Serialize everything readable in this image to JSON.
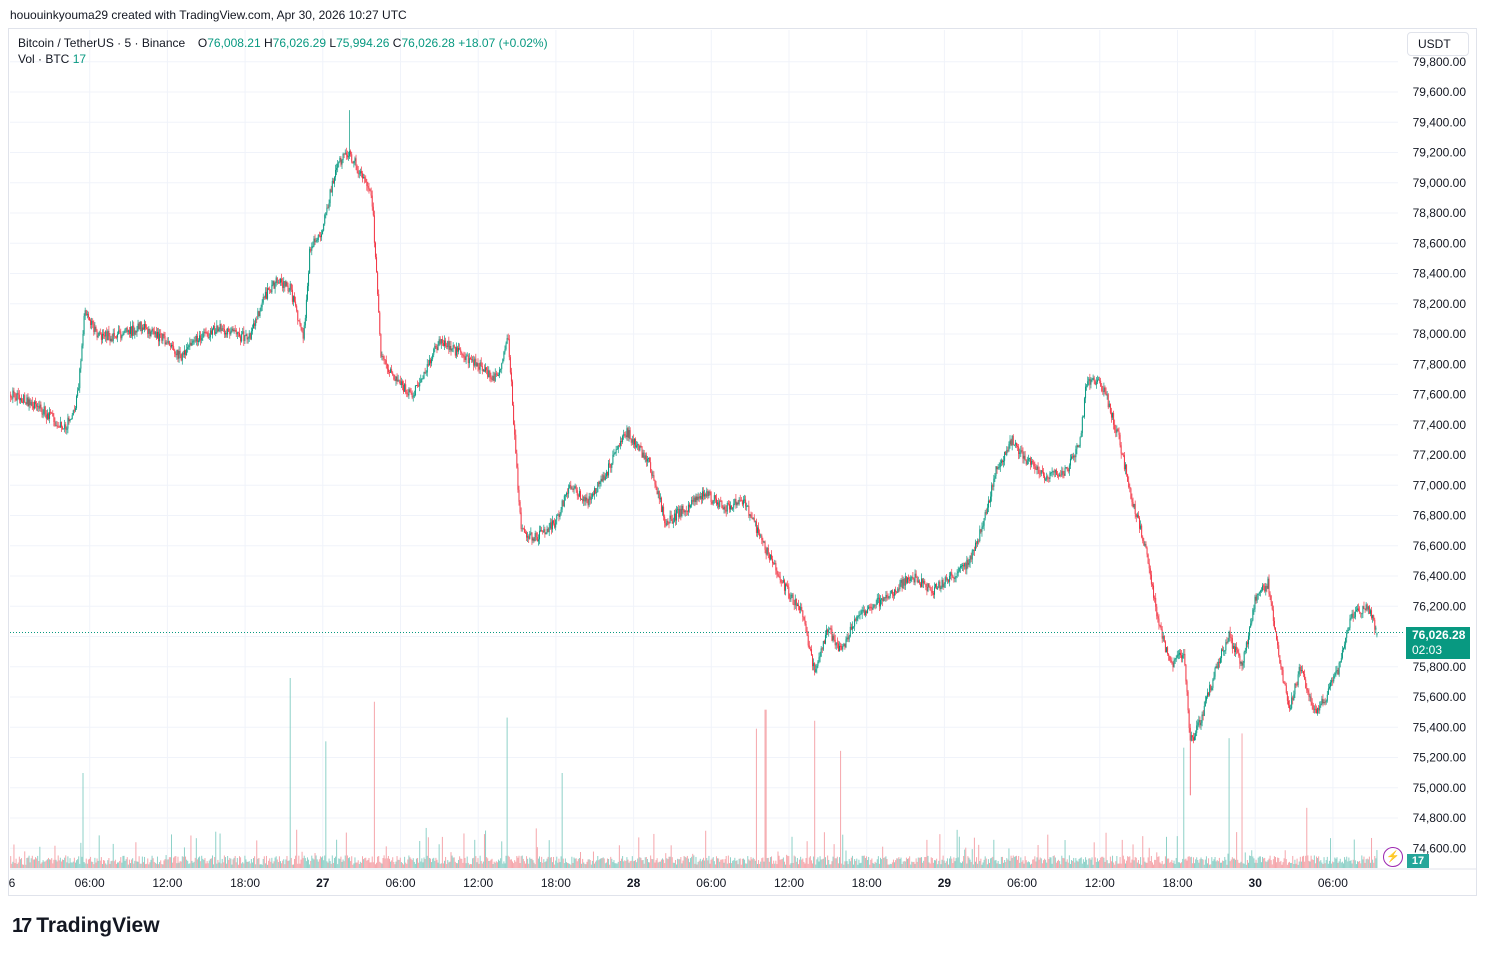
{
  "caption": "hououinkyouma29 created with TradingView.com, Apr 30, 2026 10:27 UTC",
  "legend": {
    "symbol": "Bitcoin / TetherUS · 5 · Binance",
    "o_label": "O",
    "o_value": "76,008.21",
    "h_label": "H",
    "h_value": "76,026.29",
    "l_label": "L",
    "l_value": "75,994.26",
    "c_label": "C",
    "c_value": "76,026.28",
    "change": "+18.07 (+0.02%)",
    "vol_label": "Vol · BTC",
    "vol_value": "17"
  },
  "currency_button": "USDT",
  "last_price": {
    "price": "76,026.28",
    "countdown": "02:03"
  },
  "volume_tag": "17",
  "brand": {
    "name": "TradingView",
    "mark": "17"
  },
  "colors": {
    "up": "#089981",
    "down": "#f23645",
    "vol_up": "#8ed1c8",
    "vol_down": "#f5a6ab",
    "grid": "#f0f3fa"
  },
  "icons": {
    "alert": "lightning-icon",
    "logo": "tradingview-logo-icon"
  },
  "chart_data": {
    "type": "candlestick",
    "title": "Bitcoin / TetherUS · 5 · Binance",
    "ylim": [
      74500,
      79850
    ],
    "y_ticks": [
      "79,800.00",
      "79,600.00",
      "79,400.00",
      "79,200.00",
      "79,000.00",
      "78,800.00",
      "78,600.00",
      "78,400.00",
      "78,200.00",
      "78,000.00",
      "77,800.00",
      "77,600.00",
      "77,400.00",
      "77,200.00",
      "77,000.00",
      "76,800.00",
      "76,600.00",
      "76,400.00",
      "76,200.00",
      "76,000.00",
      "75,800.00",
      "75,600.00",
      "75,400.00",
      "75,200.00",
      "75,000.00",
      "74,800.00",
      "74,600.00"
    ],
    "y_tick_values": [
      79800,
      79600,
      79400,
      79200,
      79000,
      78800,
      78600,
      78400,
      78200,
      78000,
      77800,
      77600,
      77400,
      77200,
      77000,
      76800,
      76600,
      76400,
      76200,
      76000,
      75800,
      75600,
      75400,
      75200,
      75000,
      74800,
      74600
    ],
    "x_ticks": [
      "6",
      "06:00",
      "12:00",
      "18:00",
      "27",
      "06:00",
      "12:00",
      "18:00",
      "28",
      "06:00",
      "12:00",
      "18:00",
      "29",
      "06:00",
      "12:00",
      "18:00",
      "30",
      "06:00"
    ],
    "x_tick_hours": [
      0,
      6,
      12,
      18,
      24,
      30,
      36,
      42,
      48,
      54,
      60,
      66,
      72,
      78,
      84,
      90,
      96,
      102
    ],
    "x_tick_bold": [
      false,
      false,
      false,
      false,
      true,
      false,
      false,
      false,
      true,
      false,
      false,
      false,
      true,
      false,
      false,
      false,
      true,
      false
    ],
    "interval_minutes": 5,
    "close_path": [
      [
        -0.1,
        77600
      ],
      [
        2,
        77520
      ],
      [
        4,
        77380
      ],
      [
        4.8,
        77480
      ],
      [
        5.2,
        77700
      ],
      [
        5.6,
        78150
      ],
      [
        6.5,
        78000
      ],
      [
        8,
        77980
      ],
      [
        10,
        78050
      ],
      [
        12,
        77950
      ],
      [
        13,
        77850
      ],
      [
        14,
        77950
      ],
      [
        16,
        78050
      ],
      [
        17.5,
        77980
      ],
      [
        18.5,
        78000
      ],
      [
        19.5,
        78250
      ],
      [
        20.5,
        78350
      ],
      [
        21.5,
        78300
      ],
      [
        22.5,
        77950
      ],
      [
        23,
        78550
      ],
      [
        24,
        78700
      ],
      [
        25,
        79100
      ],
      [
        26,
        79200
      ],
      [
        27,
        79050
      ],
      [
        27.8,
        78900
      ],
      [
        28.5,
        77850
      ],
      [
        29.5,
        77700
      ],
      [
        31,
        77600
      ],
      [
        33,
        77950
      ],
      [
        35,
        77850
      ],
      [
        37.5,
        77700
      ],
      [
        38.3,
        78000
      ],
      [
        38.8,
        77350
      ],
      [
        39.3,
        76700
      ],
      [
        40.5,
        76650
      ],
      [
        42,
        76750
      ],
      [
        43,
        77000
      ],
      [
        44.5,
        76900
      ],
      [
        46,
        77100
      ],
      [
        47.5,
        77350
      ],
      [
        49.2,
        77150
      ],
      [
        50.5,
        76750
      ],
      [
        52,
        76850
      ],
      [
        53.5,
        76950
      ],
      [
        55,
        76850
      ],
      [
        56.5,
        76900
      ],
      [
        57.8,
        76650
      ],
      [
        59.5,
        76350
      ],
      [
        61,
        76150
      ],
      [
        62,
        75750
      ],
      [
        63,
        76050
      ],
      [
        64,
        75900
      ],
      [
        65,
        76100
      ],
      [
        66.5,
        76200
      ],
      [
        68,
        76300
      ],
      [
        69.5,
        76400
      ],
      [
        71,
        76300
      ],
      [
        72.5,
        76400
      ],
      [
        74,
        76500
      ],
      [
        75,
        76750
      ],
      [
        76,
        77100
      ],
      [
        77.2,
        77300
      ],
      [
        78.5,
        77150
      ],
      [
        80,
        77050
      ],
      [
        81.5,
        77100
      ],
      [
        82.5,
        77300
      ],
      [
        83,
        77700
      ],
      [
        84.3,
        77650
      ],
      [
        85.5,
        77300
      ],
      [
        86.5,
        76900
      ],
      [
        87.5,
        76600
      ],
      [
        88.5,
        76100
      ],
      [
        89.5,
        75800
      ],
      [
        90.5,
        75900
      ],
      [
        91,
        75300
      ],
      [
        92,
        75500
      ],
      [
        93,
        75800
      ],
      [
        94,
        76000
      ],
      [
        95,
        75800
      ],
      [
        96,
        76250
      ],
      [
        97,
        76350
      ],
      [
        98,
        75800
      ],
      [
        98.6,
        75500
      ],
      [
        99.5,
        75800
      ],
      [
        100.5,
        75500
      ],
      [
        101.5,
        75600
      ],
      [
        102.5,
        75800
      ],
      [
        103.5,
        76150
      ],
      [
        104.7,
        76200
      ],
      [
        105.4,
        76026
      ]
    ],
    "price_high": 79480,
    "price_low": 74950,
    "volume_spikes": [
      [
        5.5,
        600
      ],
      [
        21.5,
        1200
      ],
      [
        24.2,
        800
      ],
      [
        28,
        1050
      ],
      [
        38.2,
        950
      ],
      [
        42.5,
        600
      ],
      [
        57.5,
        880
      ],
      [
        58.2,
        1000
      ],
      [
        62,
        930
      ],
      [
        64,
        740
      ],
      [
        90.5,
        760
      ],
      [
        94,
        820
      ],
      [
        95,
        850
      ],
      [
        100,
        380
      ]
    ],
    "last_price": 76026.28,
    "last_volume": 17
  }
}
